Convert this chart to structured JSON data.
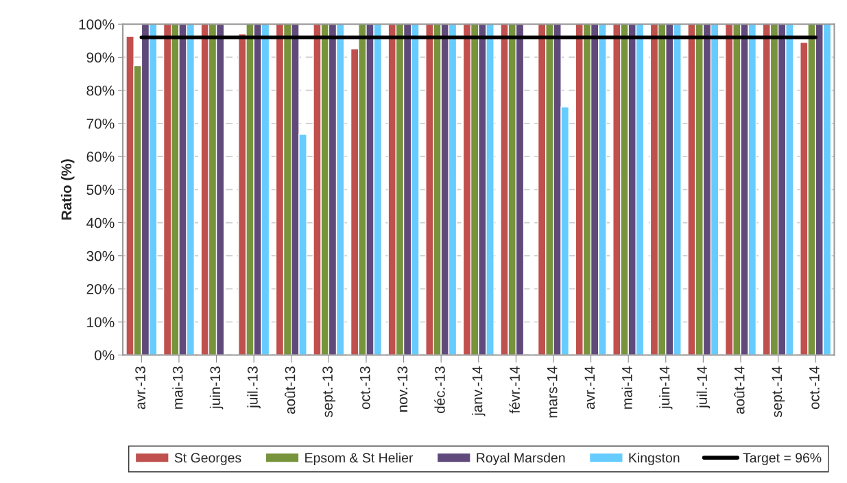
{
  "chart_data": {
    "type": "bar",
    "ylabel": "Ratio (%)",
    "categories": [
      "avr.-13",
      "mai-13",
      "juin-13",
      "juil.-13",
      "août-13",
      "sept.-13",
      "oct.-13",
      "nov.-13",
      "déc.-13",
      "janv.-14",
      "févr.-14",
      "mars-14",
      "avr.-14",
      "mai-14",
      "juin-14",
      "juil.-14",
      "août-14",
      "sept.-14",
      "oct.-14"
    ],
    "series": [
      {
        "name": "St Georges",
        "color": "#c0504d",
        "values": [
          96.3,
          100,
          100,
          97,
          100,
          100,
          92.5,
          100,
          100,
          100,
          100,
          100,
          100,
          100,
          100,
          100,
          100,
          100,
          94.5
        ]
      },
      {
        "name": "Epsom & St Helier",
        "color": "#77933c",
        "values": [
          87.5,
          100,
          100,
          100,
          100,
          100,
          100,
          100,
          100,
          100,
          100,
          100,
          100,
          100,
          100,
          100,
          100,
          100,
          100
        ]
      },
      {
        "name": "Royal Marsden",
        "color": "#604a7b",
        "values": [
          100,
          100,
          100,
          100,
          100,
          100,
          100,
          100,
          100,
          100,
          100,
          100,
          100,
          100,
          100,
          100,
          100,
          100,
          100
        ]
      },
      {
        "name": "Kingston",
        "color": "#66ccff",
        "values": [
          100,
          100,
          null,
          100,
          66.7,
          100,
          100,
          100,
          100,
          100,
          null,
          75,
          100,
          100,
          100,
          100,
          100,
          100,
          100
        ]
      },
      {
        "name": "Target = 96%",
        "type": "line",
        "color": "#000000",
        "values": [
          96,
          96,
          96,
          96,
          96,
          96,
          96,
          96,
          96,
          96,
          96,
          96,
          96,
          96,
          96,
          96,
          96,
          96,
          96
        ]
      }
    ],
    "ylim": [
      0,
      100
    ],
    "yticks": [
      {
        "value": 0,
        "label": "0%"
      },
      {
        "value": 10,
        "label": "10%"
      },
      {
        "value": 20,
        "label": "20%"
      },
      {
        "value": 30,
        "label": "30%"
      },
      {
        "value": 40,
        "label": "40%"
      },
      {
        "value": 50,
        "label": "50%"
      },
      {
        "value": 60,
        "label": "60%"
      },
      {
        "value": 70,
        "label": "70%"
      },
      {
        "value": 80,
        "label": "80%"
      },
      {
        "value": 90,
        "label": "90%"
      },
      {
        "value": 100,
        "label": "100%"
      }
    ],
    "grid": "y",
    "legend": "bottom"
  }
}
